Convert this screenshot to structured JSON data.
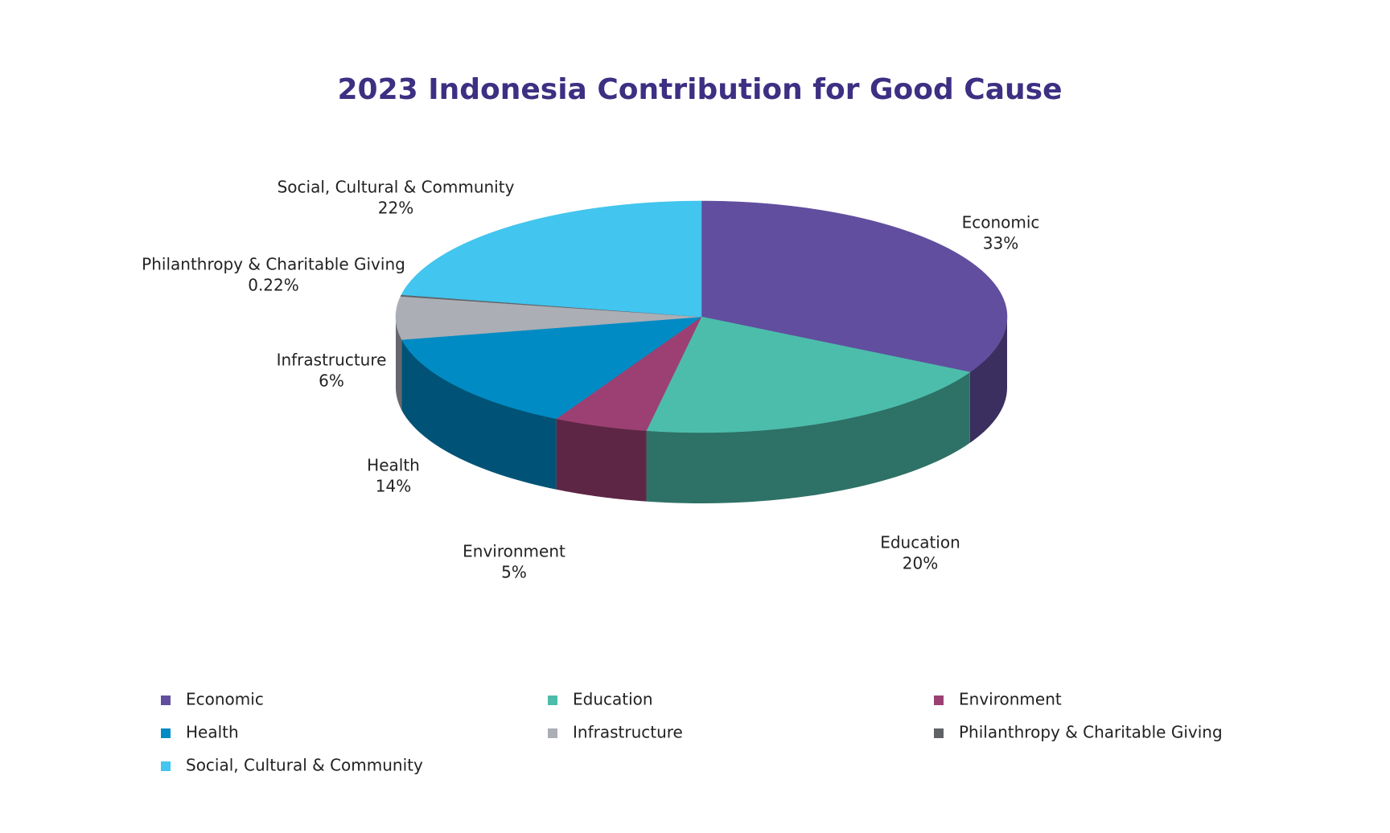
{
  "chart_data": {
    "type": "pie",
    "title": "2023 Indonesia Contribution for Good Cause",
    "categories": [
      "Economic",
      "Education",
      "Environment",
      "Health",
      "Infrastructure",
      "Philanthropy & Charitable Giving",
      "Social, Cultural & Community"
    ],
    "values": [
      33,
      20,
      5,
      14,
      6,
      0.22,
      22
    ],
    "value_labels": [
      "33%",
      "20%",
      "5%",
      "14%",
      "6%",
      "0.22%",
      "22%"
    ],
    "colors": [
      "#614e9e",
      "#4cbdab",
      "#9c4073",
      "#008bc4",
      "#abaeb5",
      "#5f6266",
      "#42c5ee"
    ]
  }
}
